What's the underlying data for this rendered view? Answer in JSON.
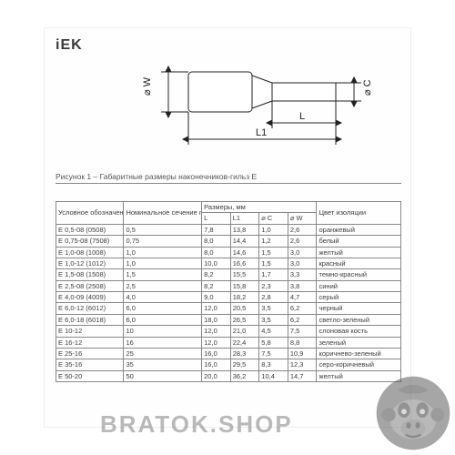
{
  "logo_text": "iEK",
  "caption": "Рисунок 1 – Габаритные размеры наконечников-гильз Е",
  "diagram": {
    "labels": {
      "W": "⌀ W",
      "C": "⌀ C",
      "L": "L",
      "L1": "L1"
    },
    "colors": {
      "stroke": "#222222",
      "fill": "#ffffff"
    }
  },
  "table": {
    "header_row1": [
      "Условное обозначение",
      "Номинальное сечение проводников, мм²",
      "Размеры, мм",
      "Цвет изоляции"
    ],
    "header_row2": [
      "L",
      "L1",
      "⌀ C",
      "⌀ W"
    ],
    "rows": [
      [
        "E 0,5-08 (0508)",
        "0,5",
        "7,8",
        "13,8",
        "1,0",
        "2,6",
        "оранжевый"
      ],
      [
        "E 0,75-08 (7508)",
        "0,75",
        "8,0",
        "14,4",
        "1,2",
        "2,6",
        "белый"
      ],
      [
        "E 1,0-08 (1008)",
        "1,0",
        "8,0",
        "14,6",
        "1,5",
        "3,0",
        "желтый"
      ],
      [
        "E 1,0-12 (1012)",
        "1,0",
        "10,0",
        "16,6",
        "1,5",
        "3,0",
        "красный"
      ],
      [
        "E 1,5-08 (1508)",
        "1,5",
        "8,2",
        "15,5",
        "1,7",
        "3,3",
        "темно-красный"
      ],
      [
        "E 2,5-08 (2508)",
        "2,5",
        "8,2",
        "15,8",
        "2,3",
        "3,8",
        "синий"
      ],
      [
        "E 4,0-09 (4009)",
        "4,0",
        "9,0",
        "18,2",
        "2,8",
        "4,7",
        "серый"
      ],
      [
        "E 6,0-12 (6012)",
        "6,0",
        "12,0",
        "20,5",
        "3,5",
        "6,2",
        "черный"
      ],
      [
        "E 6,0-18 (6018)",
        "6,0",
        "18,0",
        "26,5",
        "3,5",
        "6,2",
        "светло-зеленый"
      ],
      [
        "E 10-12",
        "10",
        "12,0",
        "21,0",
        "4,5",
        "7,5",
        "слоновая кость"
      ],
      [
        "E 16-12",
        "16",
        "12,0",
        "22,4",
        "5,8",
        "8,8",
        "зеленый"
      ],
      [
        "E 25-16",
        "25",
        "16,0",
        "28,3",
        "7,5",
        "10,9",
        "коричнево-зеленый"
      ],
      [
        "E 35-16",
        "35",
        "16,0",
        "29,5",
        "8,3",
        "12,3",
        "серо-коричневый"
      ],
      [
        "E 50-20",
        "50",
        "20,0",
        "36,2",
        "10,4",
        "14,7",
        "желтый"
      ]
    ]
  },
  "watermark_text": "BRATOK.SHOP",
  "colors": {
    "page_bg": "#ffffff",
    "sheet_bg": "#fefefe",
    "border": "#888888",
    "text": "#404040",
    "wm_text": "rgba(90,90,90,0.42)",
    "gorilla": "#5e5e5e"
  }
}
